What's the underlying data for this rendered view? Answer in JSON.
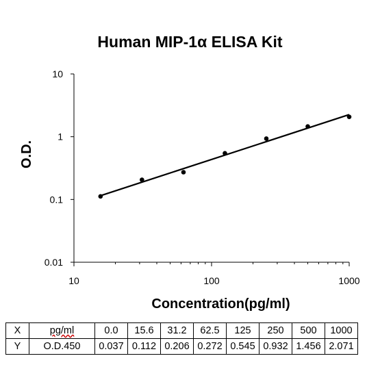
{
  "chart_data": {
    "type": "scatter",
    "title": "Human MIP-1α ELISA Kit",
    "xlabel": "Concentration(pg/ml)",
    "ylabel": "O.D.",
    "xscale": "log",
    "yscale": "log",
    "xlim": [
      10,
      1000
    ],
    "ylim": [
      0.01,
      10
    ],
    "xticks": [
      "10",
      "100",
      "1000"
    ],
    "yticks": [
      "0.01",
      "0.1",
      "1",
      "10"
    ],
    "grid": false,
    "legend": "none",
    "series": [
      {
        "x": [
          15.6,
          31.2,
          62.5,
          125,
          250,
          500,
          1000
        ],
        "y": [
          0.112,
          0.206,
          0.272,
          0.545,
          0.932,
          1.456,
          2.071
        ]
      }
    ],
    "fit_line": {
      "x": [
        15.6,
        1000
      ],
      "y": [
        0.115,
        2.25
      ]
    },
    "table": {
      "rows": [
        {
          "label": "X",
          "unit": "pg/ml",
          "values": [
            "0.0",
            "15.6",
            "31.2",
            "62.5",
            "125",
            "250",
            "500",
            "1000"
          ]
        },
        {
          "label": "Y",
          "unit": "O.D.450",
          "values": [
            "0.037",
            "0.112",
            "0.206",
            "0.272",
            "0.545",
            "0.932",
            "1.456",
            "2.071"
          ]
        }
      ]
    },
    "colors": {
      "marks": "#000000",
      "background": "#ffffff"
    }
  }
}
